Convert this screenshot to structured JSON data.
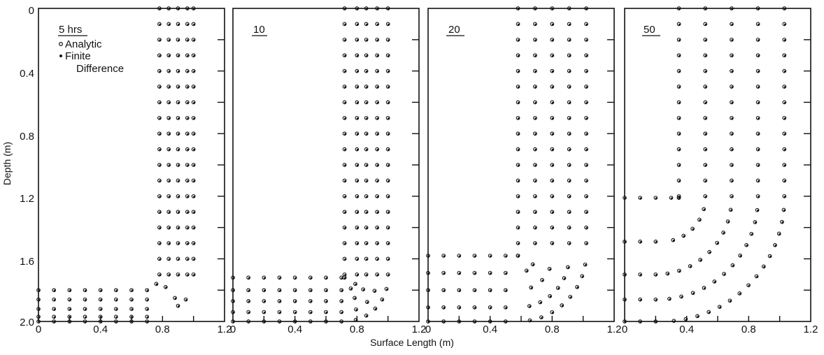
{
  "figure": {
    "ylabel": "Depth (m)",
    "xlabel": "Surface Length (m)",
    "legend": {
      "analytic": "Analytic",
      "fd_line1": "Finite",
      "fd_line2": "Difference"
    },
    "panel_titles": [
      "5 hrs",
      "10",
      "20",
      "50"
    ],
    "x_ticks": [
      "0",
      "0.4",
      "0.8",
      "1.2"
    ],
    "y_ticks": [
      "0",
      "0.4",
      "0.8",
      "1.2",
      "1.6",
      "2.0"
    ]
  },
  "chart_data": [
    {
      "type": "scatter",
      "title": "5 hrs",
      "xlim": [
        0,
        1.2
      ],
      "ylim": [
        0,
        2.0
      ],
      "y_inverted": true,
      "xlabel": "",
      "ylabel": "Depth (m)",
      "legend_position": "top-left",
      "description": "Contour nodes: vertical front near x=0.78-1.0, horizontal front near depth 1.8",
      "vertical_columns_x": [
        0.78,
        0.84,
        0.9,
        0.96,
        1.0
      ],
      "vertical_depth_range": [
        0.0,
        1.8
      ],
      "horizontal_rows_depth": [
        1.8,
        1.86,
        1.92,
        1.97,
        2.0
      ],
      "horizontal_x_range": [
        0.0,
        0.75
      ]
    },
    {
      "type": "scatter",
      "title": "10",
      "xlim": [
        0,
        1.2
      ],
      "ylim": [
        0,
        2.0
      ],
      "y_inverted": true,
      "xlabel": "",
      "ylabel": "",
      "vertical_columns_x": [
        0.72,
        0.8,
        0.86,
        0.93,
        1.0
      ],
      "horizontal_rows_depth": [
        1.72,
        1.8,
        1.87,
        1.94,
        2.0
      ],
      "corner_x": 0.72,
      "corner_depth": 1.72
    },
    {
      "type": "scatter",
      "title": "20",
      "xlim": [
        0,
        1.2
      ],
      "ylim": [
        0,
        2.0
      ],
      "y_inverted": true,
      "xlabel": "Surface Length (m)",
      "ylabel": "",
      "vertical_columns_x": [
        0.58,
        0.69,
        0.8,
        0.91,
        1.02
      ],
      "horizontal_rows_depth": [
        1.58,
        1.69,
        1.8,
        1.91,
        2.0
      ],
      "corner_x": 0.58,
      "corner_depth": 1.58
    },
    {
      "type": "scatter",
      "title": "50",
      "xlim": [
        0,
        1.2
      ],
      "ylim": [
        0,
        2.0
      ],
      "y_inverted": true,
      "xlabel": "",
      "ylabel": "",
      "vertical_columns_x": [
        0.35,
        0.52,
        0.69,
        0.86,
        1.03
      ],
      "horizontal_rows_depth": [
        1.21,
        1.49,
        1.7,
        1.86,
        2.0
      ],
      "corner_x": 0.35,
      "corner_depth": 1.21
    }
  ]
}
